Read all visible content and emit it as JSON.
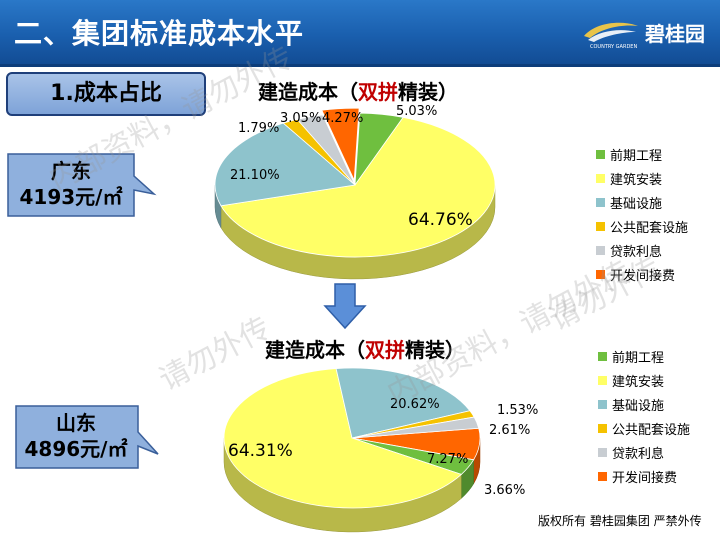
{
  "header": {
    "title": "二、集团标准成本水平",
    "brand": "碧桂园",
    "logo_sub": "COUNTRY GARDEN"
  },
  "section": {
    "label": "1.成本占比"
  },
  "regions": [
    {
      "name": "广东",
      "cost": "4193元/㎡"
    },
    {
      "name": "山东",
      "cost": "4896元/㎡"
    }
  ],
  "chart_title": {
    "prefix": "建造成本（",
    "highlight": "双拼",
    "suffix": "精装）"
  },
  "legend": [
    "前期工程",
    "建筑安装",
    "基础设施",
    "公共配套设施",
    "贷款利息",
    "开发间接费"
  ],
  "colors": [
    "#6fbf3f",
    "#ffff66",
    "#8ec3cc",
    "#f5c200",
    "#c8cdd2",
    "#ff6600"
  ],
  "watermark": [
    "内部资料，请勿外传",
    "请勿外传",
    "内部资料，请勿外传",
    "请勿外传"
  ],
  "footer": "版权所有 碧桂园集团 严禁外传",
  "chart_data": [
    {
      "type": "pie",
      "title": "建造成本（双拼精装）",
      "region": "广东",
      "categories": [
        "前期工程",
        "建筑安装",
        "基础设施",
        "公共配套设施",
        "贷款利息",
        "开发间接费"
      ],
      "values": [
        5.03,
        64.76,
        21.1,
        1.79,
        3.05,
        4.27
      ],
      "labels": [
        "5.03%",
        "64.76%",
        "21.10%",
        "1.79%",
        "3.05%",
        "4.27%"
      ],
      "legend_position": "right"
    },
    {
      "type": "pie",
      "title": "建造成本（双拼精装）",
      "region": "山东",
      "categories": [
        "前期工程",
        "建筑安装",
        "基础设施",
        "公共配套设施",
        "贷款利息",
        "开发间接费"
      ],
      "values": [
        3.66,
        64.31,
        20.62,
        1.53,
        2.61,
        7.27
      ],
      "labels": [
        "3.66%",
        "64.31%",
        "20.62%",
        "1.53%",
        "2.61%",
        "7.27%"
      ],
      "legend_position": "right"
    }
  ]
}
